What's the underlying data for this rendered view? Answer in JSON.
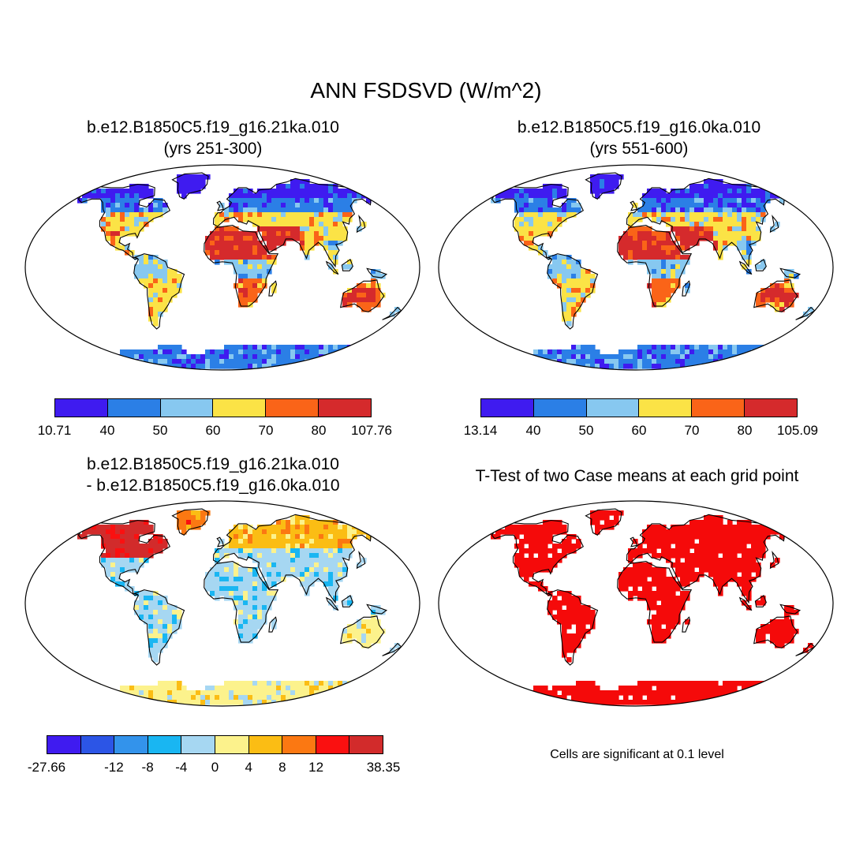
{
  "figure": {
    "title": "ANN FSDSVD (W/m^2)"
  },
  "panels": {
    "top_left": {
      "title_line1": "b.e12.B1850C5.f19_g16.21ka.010",
      "title_line2": "(yrs 251-300)",
      "colorbar": {
        "colors": [
          "#3f1bf0",
          "#2b7fe6",
          "#87c8f0",
          "#fbe346",
          "#fa6418",
          "#d52a2c"
        ],
        "labels": [
          "10.71",
          "40",
          "50",
          "60",
          "70",
          "80",
          "107.76"
        ]
      }
    },
    "top_right": {
      "title_line1": "b.e12.B1850C5.f19_g16.0ka.010",
      "title_line2": "(yrs 551-600)",
      "colorbar": {
        "colors": [
          "#3f1bf0",
          "#2b7fe6",
          "#87c8f0",
          "#fbe346",
          "#fa6418",
          "#d52a2c"
        ],
        "labels": [
          "13.14",
          "40",
          "50",
          "60",
          "70",
          "80",
          "105.09"
        ]
      }
    },
    "bottom_left": {
      "title_line1": "b.e12.B1850C5.f19_g16.21ka.010",
      "title_line2": "- b.e12.B1850C5.f19_g16.0ka.010",
      "colorbar": {
        "colors": [
          "#3f1bf0",
          "#2c55e6",
          "#3393eb",
          "#19b6f2",
          "#a6d7f2",
          "#fcf28c",
          "#fbbd14",
          "#fb7812",
          "#fa1010",
          "#d22b2b"
        ],
        "labels": [
          "-27.66",
          "",
          "-12",
          "-8",
          "-4",
          "0",
          "4",
          "8",
          "12",
          "",
          "38.35"
        ]
      }
    },
    "bottom_right": {
      "title_line1": "T-Test of two Case means at each grid point",
      "note": "Cells are significant at 0.1 level",
      "fill_color": "#f50a0a"
    }
  }
}
